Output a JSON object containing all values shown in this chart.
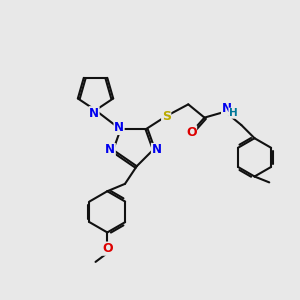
{
  "bg_color": "#e8e8e8",
  "atom_colors": {
    "N": "#0000ee",
    "O": "#dd0000",
    "S": "#bbaa00",
    "H": "#007799",
    "C": "#111111"
  },
  "bond_color": "#111111",
  "bond_width": 1.5,
  "figsize": [
    3.0,
    3.0
  ],
  "dpi": 100
}
